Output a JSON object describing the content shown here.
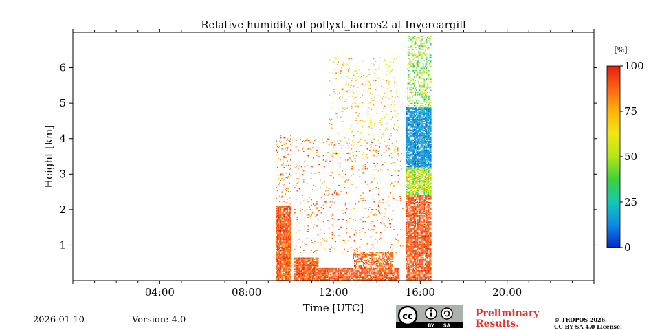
{
  "chart_data": {
    "type": "heatmap",
    "title": "Relative humidity of pollyxt_lacros2 at Invercargill",
    "xlabel": "Time [UTC]",
    "ylabel": "Height [km]",
    "xlim_hours": [
      0,
      24
    ],
    "ylim_km": [
      0,
      7
    ],
    "x_ticks": [
      {
        "hour": 4,
        "label": "04:00"
      },
      {
        "hour": 8,
        "label": "08:00"
      },
      {
        "hour": 12,
        "label": "12:00"
      },
      {
        "hour": 16,
        "label": "16:00"
      },
      {
        "hour": 20,
        "label": "20:00"
      }
    ],
    "y_ticks": [
      {
        "km": 1,
        "label": "1"
      },
      {
        "km": 2,
        "label": "2"
      },
      {
        "km": 3,
        "label": "3"
      },
      {
        "km": 4,
        "label": "4"
      },
      {
        "km": 5,
        "label": "5"
      },
      {
        "km": 6,
        "label": "6"
      }
    ],
    "colorbar": {
      "unit": "[%]",
      "min": 0,
      "max": 100,
      "ticks": [
        {
          "value": 0,
          "label": "0"
        },
        {
          "value": 25,
          "label": "25"
        },
        {
          "value": 50,
          "label": "50"
        },
        {
          "value": 75,
          "label": "75"
        },
        {
          "value": 100,
          "label": "100"
        }
      ],
      "colormap": [
        "#0a28c8",
        "#0a8ce6",
        "#14c8b4",
        "#3cd23c",
        "#b4e614",
        "#f0e614",
        "#ffb40a",
        "#ff6414",
        "#e61e0a"
      ]
    },
    "observation_regions": [
      {
        "name": "dense near-surface layer",
        "t_start": 9.35,
        "t_end": 10.05,
        "h_min": 0.0,
        "h_max": 2.1,
        "rh_min": 78,
        "rh_max": 100,
        "density": 0.9
      },
      {
        "name": "sparse layer above first window",
        "t_start": 9.35,
        "t_end": 10.05,
        "h_min": 2.1,
        "h_max": 4.1,
        "rh_min": 70,
        "rh_max": 96,
        "density": 0.12
      },
      {
        "name": "near-surface layer",
        "t_start": 10.2,
        "t_end": 11.3,
        "h_min": 0.0,
        "h_max": 0.65,
        "rh_min": 80,
        "rh_max": 100,
        "density": 0.85
      },
      {
        "name": "surface layer",
        "t_start": 11.3,
        "t_end": 15.0,
        "h_min": 0.0,
        "h_max": 0.35,
        "rh_min": 80,
        "rh_max": 100,
        "density": 0.75
      },
      {
        "name": "mid-level aerosol layer",
        "t_start": 12.9,
        "t_end": 14.7,
        "h_min": 0.35,
        "h_max": 0.8,
        "rh_min": 78,
        "rh_max": 98,
        "density": 0.55
      },
      {
        "name": "scattered mid-level returns",
        "t_start": 10.2,
        "t_end": 15.2,
        "h_min": 0.8,
        "h_max": 4.0,
        "rh_min": 72,
        "rh_max": 98,
        "density": 0.05
      },
      {
        "name": "upper streaks",
        "t_start": 11.8,
        "t_end": 15.0,
        "h_min": 3.5,
        "h_max": 6.3,
        "rh_min": 55,
        "rh_max": 85,
        "density": 0.06
      },
      {
        "name": "dense column lower part",
        "t_start": 15.35,
        "t_end": 16.5,
        "h_min": 0.0,
        "h_max": 2.4,
        "rh_min": 82,
        "rh_max": 100,
        "density": 0.75
      },
      {
        "name": "dense column transition",
        "t_start": 15.35,
        "t_end": 16.5,
        "h_min": 2.4,
        "h_max": 3.2,
        "rh_min": 30,
        "rh_max": 75,
        "density": 0.8
      },
      {
        "name": "dense column dry core",
        "t_start": 15.35,
        "t_end": 16.5,
        "h_min": 3.2,
        "h_max": 4.9,
        "rh_min": 5,
        "rh_max": 25,
        "density": 0.85
      },
      {
        "name": "dense column top",
        "t_start": 15.4,
        "t_end": 16.5,
        "h_min": 4.9,
        "h_max": 6.9,
        "rh_min": 25,
        "rh_max": 70,
        "density": 0.35
      }
    ]
  },
  "footer": {
    "date": "2026-01-10",
    "version": "Version: 4.0",
    "cc_label": "cc",
    "cc_by": "BY",
    "cc_sa": "SA",
    "preliminary_line1": "Preliminary",
    "preliminary_line2": "Results.",
    "copyright_line1": "© TROPOS 2026.",
    "copyright_line2": "CC BY SA 4.0 License."
  }
}
